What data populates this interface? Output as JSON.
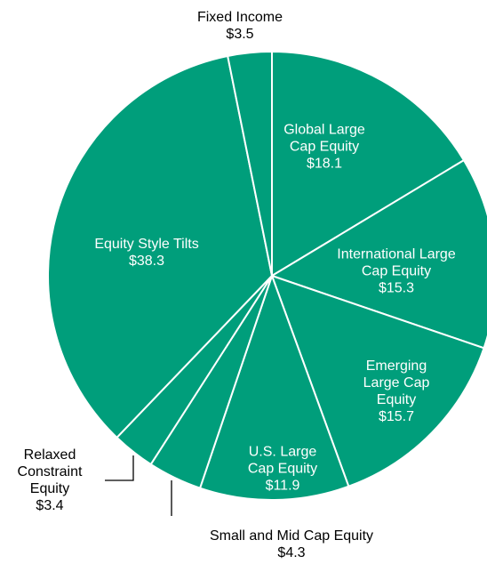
{
  "chart_data": {
    "type": "pie",
    "categories": [
      "Global Large Cap Equity",
      "International Large Cap Equity",
      "Emerging Large Cap Equity",
      "U.S. Large Cap Equity",
      "Small and Mid Cap Equity",
      "Relaxed Constraint Equity",
      "Equity Style Tilts",
      "Fixed Income"
    ],
    "values": [
      18.1,
      15.3,
      15.7,
      11.9,
      4.3,
      3.4,
      38.3,
      3.5
    ],
    "value_labels": [
      "$18.1",
      "$15.3",
      "$15.7",
      "$11.9",
      "$4.3",
      "$3.4",
      "$38.3",
      "$3.5"
    ],
    "color": "#009e7b"
  }
}
